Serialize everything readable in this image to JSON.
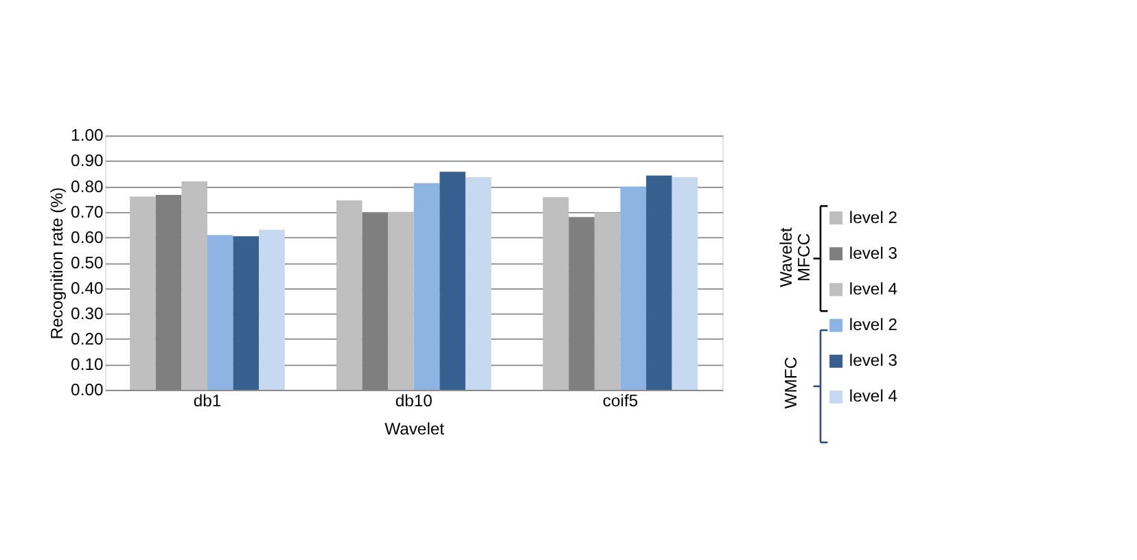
{
  "chart_data": {
    "type": "bar",
    "xlabel": "Wavelet",
    "ylabel": "Recognition rate (%)",
    "categories": [
      "db1",
      "db10",
      "coif5"
    ],
    "series": [
      {
        "name": "level 2",
        "color": "#bfbfbf",
        "values": [
          0.76,
          0.745,
          0.758
        ]
      },
      {
        "name": "level 3",
        "color": "#7f7f7f",
        "values": [
          0.767,
          0.695,
          0.68
        ]
      },
      {
        "name": "level 4",
        "color": "#bfbfbf",
        "values": [
          0.82,
          0.7,
          0.698
        ]
      },
      {
        "name": "level 2",
        "color": "#8eb4e3",
        "values": [
          0.609,
          0.813,
          0.8
        ]
      },
      {
        "name": "level 3",
        "color": "#35608f",
        "values": [
          0.604,
          0.858,
          0.843
        ]
      },
      {
        "name": "level 4",
        "color": "#c6d9f0",
        "values": [
          0.63,
          0.837,
          0.837
        ]
      }
    ],
    "ylim": [
      0,
      1.0
    ],
    "yticks": [
      {
        "value": 0,
        "label": "0.00"
      },
      {
        "value": 0.1,
        "label": "0.10"
      },
      {
        "value": 0.2,
        "label": "0.20"
      },
      {
        "value": 0.3,
        "label": "0.30"
      },
      {
        "value": 0.4,
        "label": "0.40"
      },
      {
        "value": 0.5,
        "label": "0.50"
      },
      {
        "value": 0.6,
        "label": "0.60"
      },
      {
        "value": 0.7,
        "label": "0.70"
      },
      {
        "value": 0.8,
        "label": "0.80"
      },
      {
        "value": 0.9,
        "label": "0.90"
      },
      {
        "value": 1.0,
        "label": "1.00"
      }
    ],
    "grid": "y",
    "legend": "right",
    "annotations": [
      "Wavelet MFCC",
      "WMFC"
    ]
  }
}
